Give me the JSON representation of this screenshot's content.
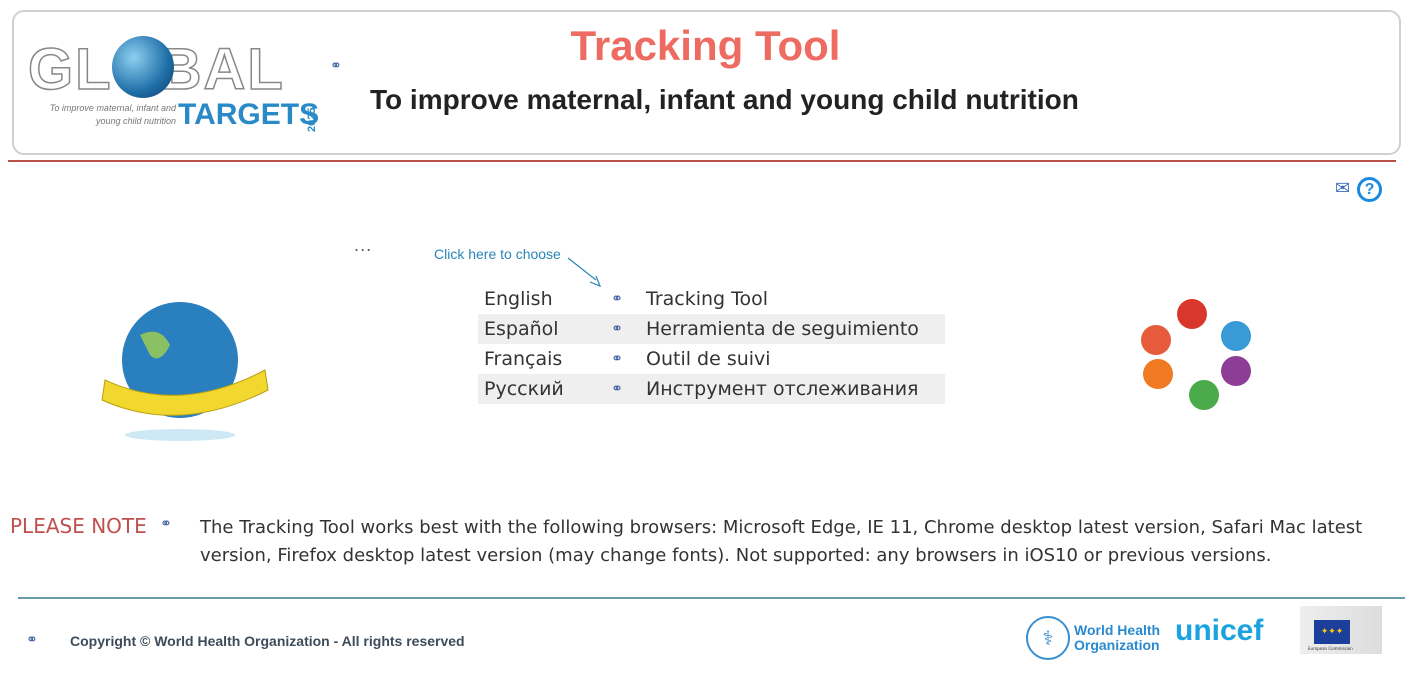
{
  "header": {
    "logo": {
      "word": "GLOBAL",
      "tagline": "To improve maternal, infant and young child nutrition",
      "targets": "TARGETS",
      "year": "2025"
    },
    "link_icon": "link-icon",
    "title": "Tracking Tool",
    "subtitle": "To improve maternal, infant and young child nutrition"
  },
  "toolbar": {
    "mail_icon": "mail-icon",
    "help_label": "?",
    "more_label": "..."
  },
  "callout": "Click here to choose",
  "languages": [
    {
      "lang": "English",
      "tool": "Tracking Tool"
    },
    {
      "lang": "Español",
      "tool": "Herramienta de seguimiento"
    },
    {
      "lang": "Français",
      "tool": "Outil de suivi"
    },
    {
      "lang": "Русский",
      "tool": "Инструмент отслеживания"
    }
  ],
  "note": {
    "label": "PLEASE NOTE",
    "text": "The Tracking Tool works best with the following browsers: Microsoft Edge, IE 11, Chrome desktop latest version, Safari Mac latest version, Firefox desktop latest version (may change fonts). Not supported: any browsers in iOS10 or previous versions."
  },
  "footer": {
    "copyright": "Copyright © World Health Organization - All rights reserved",
    "who": "World Health Organization",
    "unicef": "unicef",
    "ec": "European Commission"
  },
  "colors": {
    "title": "#ee6b61",
    "accent": "#1a8be0",
    "note": "#c0504d"
  }
}
